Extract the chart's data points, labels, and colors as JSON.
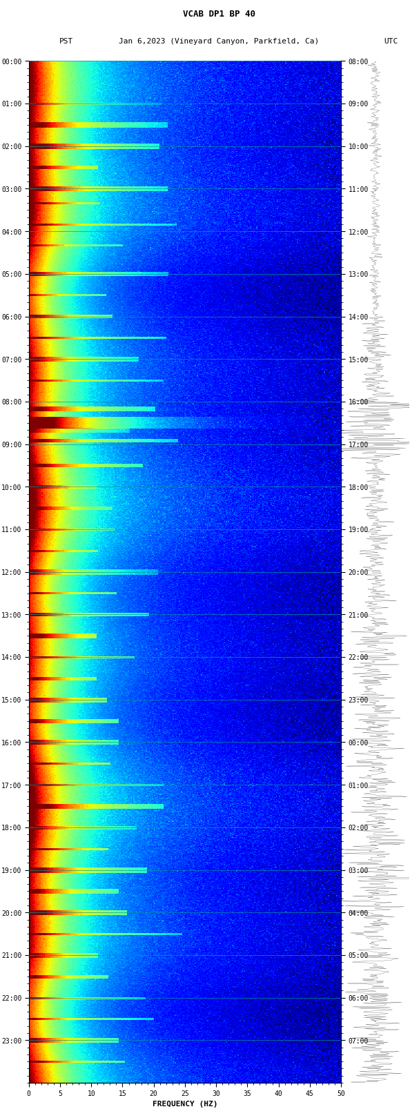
{
  "title_line1": "VCAB DP1 BP 40",
  "title_line2_left": "PST",
  "title_line2_center": "Jan 6,2023 (Vineyard Canyon, Parkfield, Ca)",
  "title_line2_right": "UTC",
  "xlabel": "FREQUENCY (HZ)",
  "freq_min": 0,
  "freq_max": 50,
  "freq_ticks": [
    0,
    5,
    10,
    15,
    20,
    25,
    30,
    35,
    40,
    45,
    50
  ],
  "pst_labels": [
    "00:00",
    "01:00",
    "02:00",
    "03:00",
    "04:00",
    "05:00",
    "06:00",
    "07:00",
    "08:00",
    "09:00",
    "10:00",
    "11:00",
    "12:00",
    "13:00",
    "14:00",
    "15:00",
    "16:00",
    "17:00",
    "18:00",
    "19:00",
    "20:00",
    "21:00",
    "22:00",
    "23:00"
  ],
  "utc_labels": [
    "08:00",
    "09:00",
    "10:00",
    "11:00",
    "12:00",
    "13:00",
    "14:00",
    "15:00",
    "16:00",
    "17:00",
    "18:00",
    "19:00",
    "20:00",
    "21:00",
    "22:00",
    "23:00",
    "00:00",
    "01:00",
    "02:00",
    "03:00",
    "04:00",
    "05:00",
    "06:00",
    "07:00"
  ],
  "background_color": "#ffffff",
  "usgs_green": "#1a6b3c",
  "grid_color": "#4488aa",
  "num_time_steps": 1440,
  "num_freq_bins": 300,
  "seed": 42
}
